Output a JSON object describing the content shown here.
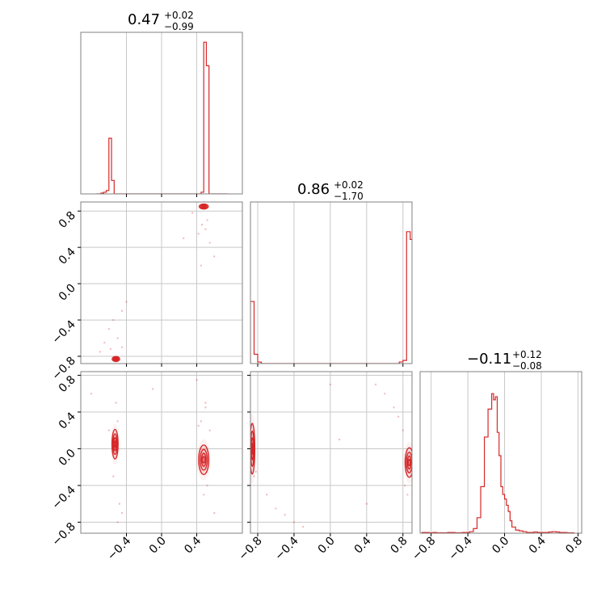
{
  "chart_data": {
    "type": "corner",
    "color": "#d62728",
    "grid": true,
    "variables": [
      {
        "title": {
          "value": "0.47",
          "plus": "+0.02",
          "minus": "−0.99"
        },
        "range": [
          -0.92,
          0.92
        ],
        "ticks": [
          -0.4,
          0.0,
          0.4
        ],
        "tick_labels": [
          "−0.4",
          "0.0",
          "0.4"
        ],
        "hist": {
          "bin_edges": [
            -0.75,
            -0.72,
            -0.69,
            -0.66,
            -0.63,
            -0.6,
            -0.57,
            -0.54,
            -0.51,
            -0.48,
            -0.45,
            -0.42,
            -0.39,
            -0.36,
            -0.33,
            -0.3,
            -0.27,
            -0.24,
            -0.21,
            -0.18,
            -0.15,
            -0.12,
            -0.09,
            -0.06,
            -0.03,
            0.0,
            0.03,
            0.06,
            0.09,
            0.12,
            0.15,
            0.18,
            0.21,
            0.24,
            0.27,
            0.3,
            0.33,
            0.36,
            0.39,
            0.42,
            0.45,
            0.48,
            0.51,
            0.54,
            0.57,
            0.6,
            0.63,
            0.66,
            0.69,
            0.72,
            0.75
          ],
          "counts": [
            0,
            0,
            0.5,
            1,
            2,
            33,
            8,
            0,
            0,
            0,
            0,
            0,
            0,
            0,
            0,
            0,
            0,
            0,
            0,
            0,
            0,
            0,
            0,
            0,
            0,
            0,
            0,
            0,
            0,
            0,
            0,
            0,
            0,
            0,
            0,
            0,
            0,
            0,
            0,
            0,
            1,
            90,
            76,
            0,
            0,
            0,
            0,
            0,
            0,
            0
          ],
          "max": 92
        }
      },
      {
        "title": {
          "value": "0.86",
          "plus": "+0.02",
          "minus": "−1.70"
        },
        "range": [
          -0.88,
          0.9
        ],
        "ticks": [
          -0.8,
          -0.4,
          0.0,
          0.4,
          0.8
        ],
        "tick_labels": [
          "−0.8",
          "−0.4",
          "0.0",
          "0.4",
          "0.8"
        ],
        "hist": {
          "bin_edges": [
            -0.88,
            -0.84,
            -0.8,
            -0.76,
            -0.72,
            -0.68,
            -0.64,
            -0.6,
            -0.56,
            -0.52,
            -0.48,
            -0.44,
            -0.4,
            -0.36,
            -0.32,
            -0.28,
            -0.24,
            -0.2,
            -0.16,
            -0.12,
            -0.08,
            -0.04,
            0.0,
            0.04,
            0.08,
            0.12,
            0.16,
            0.2,
            0.24,
            0.28,
            0.32,
            0.36,
            0.4,
            0.44,
            0.48,
            0.52,
            0.56,
            0.6,
            0.64,
            0.68,
            0.72,
            0.76,
            0.8,
            0.84,
            0.88,
            0.9
          ],
          "counts": [
            40,
            6,
            1,
            0,
            0,
            0,
            0,
            0,
            0,
            0,
            0,
            0,
            0,
            0,
            0,
            0,
            0,
            0,
            0,
            0,
            0,
            0,
            0,
            0,
            0,
            0,
            0,
            0,
            0,
            0,
            0,
            0,
            0,
            0,
            0,
            0,
            0,
            0,
            0,
            0,
            0,
            1,
            2,
            85,
            80
          ],
          "max": 100
        }
      },
      {
        "title": {
          "value": "−0.11",
          "plus": "+0.12",
          "minus": "−0.08"
        },
        "range": [
          -0.92,
          0.84
        ],
        "ticks": [
          -0.8,
          -0.4,
          0.0,
          0.4,
          0.8
        ],
        "tick_labels": [
          "−0.8",
          "−0.4",
          "0.0",
          "0.4",
          "0.8"
        ],
        "hist": {
          "bin_edges": [
            -0.9,
            -0.86,
            -0.82,
            -0.78,
            -0.74,
            -0.7,
            -0.66,
            -0.62,
            -0.58,
            -0.54,
            -0.5,
            -0.46,
            -0.42,
            -0.38,
            -0.34,
            -0.3,
            -0.26,
            -0.22,
            -0.18,
            -0.14,
            -0.12,
            -0.1,
            -0.08,
            -0.06,
            -0.04,
            -0.02,
            0.0,
            0.02,
            0.04,
            0.06,
            0.08,
            0.12,
            0.16,
            0.2,
            0.24,
            0.28,
            0.32,
            0.36,
            0.4,
            0.44,
            0.48,
            0.52,
            0.56,
            0.6,
            0.64,
            0.68,
            0.72,
            0.76
          ],
          "counts": [
            0.5,
            0.5,
            0.3,
            0.5,
            0.3,
            0.3,
            0.3,
            0.5,
            0.5,
            0.3,
            0.3,
            0.5,
            0.5,
            1,
            3,
            10,
            30,
            62,
            80,
            90,
            86,
            88,
            65,
            50,
            30,
            25,
            22,
            18,
            14,
            8,
            4,
            2,
            1.5,
            1,
            0.5,
            0.5,
            0.8,
            0.5,
            0.5,
            0.5,
            0.8,
            1,
            0.8,
            0.5,
            0.5,
            0.3,
            0.3
          ],
          "max": 100
        }
      }
    ],
    "pairs": [
      {
        "row": 1,
        "col": 0,
        "clusters": [
          {
            "x": 0.48,
            "y": 0.85,
            "sx": 0.022,
            "sy": 0.012,
            "weight": 0.47
          },
          {
            "x": -0.52,
            "y": -0.83,
            "sx": 0.018,
            "sy": 0.012,
            "weight": 0.1
          }
        ],
        "scatter": [
          [
            0.5,
            0.6
          ],
          [
            0.42,
            0.55
          ],
          [
            0.55,
            0.45
          ],
          [
            0.35,
            0.78
          ],
          [
            0.25,
            0.5
          ],
          [
            0.6,
            0.3
          ],
          [
            0.45,
            0.2
          ],
          [
            -0.5,
            -0.6
          ],
          [
            -0.45,
            -0.3
          ],
          [
            -0.6,
            -0.5
          ],
          [
            -0.4,
            -0.2
          ],
          [
            -0.7,
            -0.75
          ],
          [
            -0.65,
            -0.65
          ],
          [
            -0.55,
            -0.4
          ],
          [
            -0.45,
            -0.7
          ],
          [
            0.52,
            0.7
          ],
          [
            0.46,
            0.65
          ],
          [
            -0.58,
            -0.72
          ]
        ]
      },
      {
        "row": 2,
        "col": 0,
        "clusters": [
          {
            "x": -0.53,
            "y": 0.05,
            "sx": 0.015,
            "sy": 0.07,
            "weight": 0.1
          },
          {
            "x": 0.48,
            "y": -0.12,
            "sx": 0.025,
            "sy": 0.07,
            "weight": 0.47
          }
        ],
        "scatter": [
          [
            -0.5,
            0.3
          ],
          [
            -0.55,
            -0.3
          ],
          [
            -0.48,
            -0.6
          ],
          [
            -0.52,
            0.5
          ],
          [
            -0.45,
            -0.7
          ],
          [
            -0.6,
            0.2
          ],
          [
            -0.5,
            -0.8
          ],
          [
            0.5,
            0.5
          ],
          [
            0.45,
            0.3
          ],
          [
            0.55,
            0.2
          ],
          [
            0.52,
            -0.4
          ],
          [
            0.48,
            -0.5
          ],
          [
            0.4,
            0.75
          ],
          [
            0.6,
            -0.7
          ],
          [
            0.5,
            0.45
          ],
          [
            0.42,
            0.25
          ],
          [
            -0.8,
            0.6
          ],
          [
            -0.1,
            0.65
          ]
        ]
      },
      {
        "row": 2,
        "col": 1,
        "clusters": [
          {
            "x": -0.86,
            "y": 0.0,
            "sx": 0.012,
            "sy": 0.12,
            "weight": 0.2
          },
          {
            "x": 0.87,
            "y": -0.15,
            "sx": 0.02,
            "sy": 0.07,
            "weight": 0.7
          }
        ],
        "scatter": [
          [
            -0.84,
            -0.3
          ],
          [
            -0.82,
            -0.25
          ],
          [
            -0.7,
            -0.5
          ],
          [
            -0.6,
            -0.65
          ],
          [
            -0.5,
            -0.72
          ],
          [
            -0.4,
            -0.8
          ],
          [
            -0.3,
            -0.85
          ],
          [
            0.5,
            0.7
          ],
          [
            0.6,
            0.6
          ],
          [
            0.7,
            0.45
          ],
          [
            0.75,
            0.35
          ],
          [
            0.8,
            0.2
          ],
          [
            0.4,
            -0.6
          ],
          [
            0.82,
            -0.4
          ],
          [
            0.85,
            -0.5
          ],
          [
            -0.84,
            0.2
          ],
          [
            0.0,
            0.7
          ],
          [
            0.1,
            0.1
          ]
        ]
      }
    ]
  }
}
